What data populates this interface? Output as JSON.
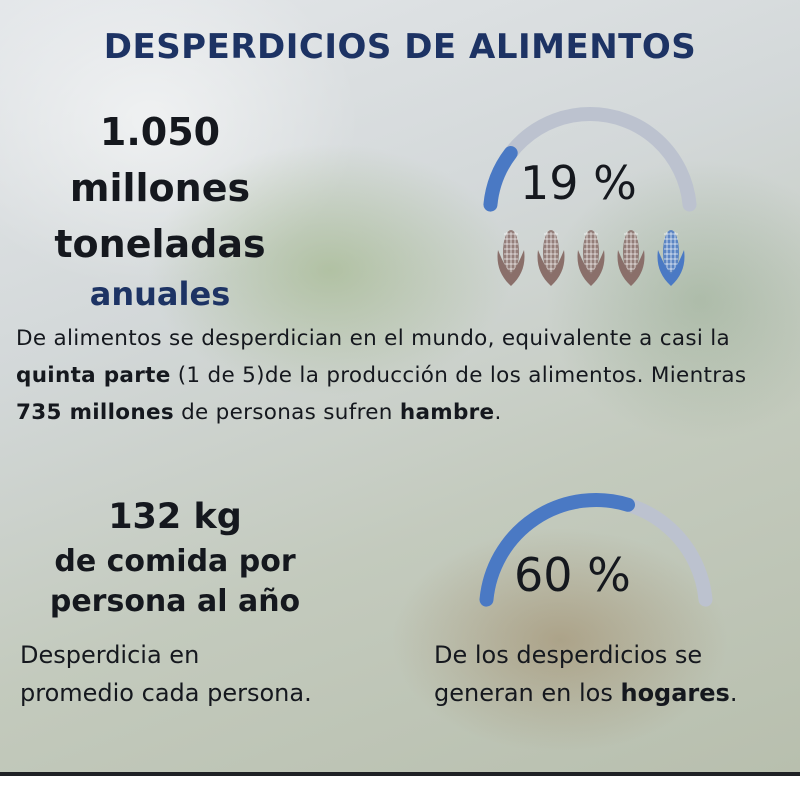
{
  "title": "DESPERDICIOS DE ALIMENTOS",
  "stat1": {
    "line1": "1.050",
    "line2": "millones",
    "line3": "toneladas",
    "line4": "anuales"
  },
  "gauge1": {
    "label": "19 %",
    "value_percent": 19,
    "fill_color": "#4a79c4",
    "track_color": "#bcc2cf"
  },
  "corn_icons": [
    {
      "name": "corn-icon-1",
      "color": "#8a6f6a"
    },
    {
      "name": "corn-icon-2",
      "color": "#8a6f6a"
    },
    {
      "name": "corn-icon-3",
      "color": "#8a6f6a"
    },
    {
      "name": "corn-icon-4",
      "color": "#8a6f6a"
    },
    {
      "name": "corn-icon-5",
      "color": "#4a79c4"
    }
  ],
  "paragraph": {
    "p1": "De alimentos se desperdician en el mundo, equivalente  a casi la ",
    "b1": "quinta parte",
    "p2": " (1 de 5)de la producción de los alimentos. Mientras ",
    "b2": "735 millones",
    "p3": " de personas sufren ",
    "b3": "hambre",
    "p4": "."
  },
  "stat2": {
    "line1": "132 kg",
    "line2": "de comida por",
    "line3": "persona al año"
  },
  "desc1": "Desperdicia en promedio cada persona.",
  "gauge2": {
    "label": "60 %",
    "value_percent": 60,
    "fill_color": "#4a79c4",
    "track_color": "#bcc2cf"
  },
  "desc2": {
    "p1": "De los desperdicios se generan en los ",
    "b1": "hogares",
    "p2": "."
  },
  "colors": {
    "title": "#1d3364",
    "text": "#15181e",
    "accent": "#4a79c4"
  }
}
